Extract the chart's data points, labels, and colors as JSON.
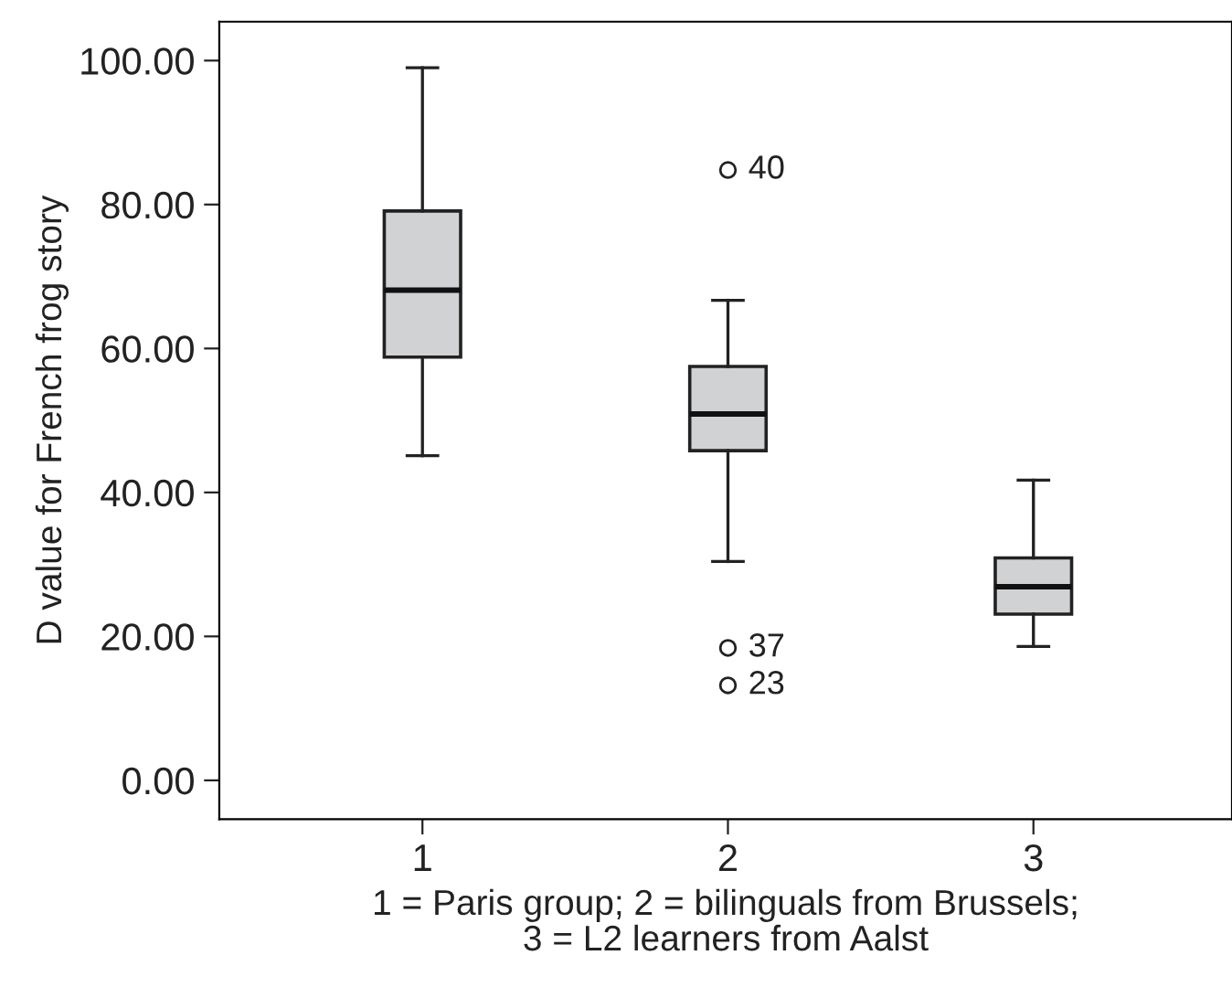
{
  "chart_data": {
    "type": "box",
    "xlabel": "1 = Paris group; 2 = bilinguals from Brussels;\n3 = L2 learners from Aalst",
    "ylabel": "D value for French frog story",
    "categories": [
      "1",
      "2",
      "3"
    ],
    "boxes": [
      {
        "low": 45.1,
        "q1": 58.8,
        "median": 68.1,
        "q3": 79.1,
        "high": 99.0
      },
      {
        "low": 30.4,
        "q1": 45.8,
        "median": 50.9,
        "q3": 57.5,
        "high": 66.7,
        "outliers": [
          84.8,
          18.4,
          13.2
        ]
      },
      {
        "low": 18.6,
        "q1": 23.1,
        "median": 26.9,
        "q3": 30.9,
        "high": 41.7
      }
    ],
    "color": "#d1d2d4",
    "ylim": [
      -5.4,
      105.4
    ],
    "yticks": [
      {
        "value": 0,
        "label": "0.00"
      },
      {
        "value": 20,
        "label": "20.00"
      },
      {
        "value": 40,
        "label": "40.00"
      },
      {
        "value": 60,
        "label": "60.00"
      },
      {
        "value": 80,
        "label": "80.00"
      },
      {
        "value": 100,
        "label": "100.00"
      }
    ],
    "annotations": [
      "40",
      "37",
      "23"
    ],
    "grid": false
  }
}
